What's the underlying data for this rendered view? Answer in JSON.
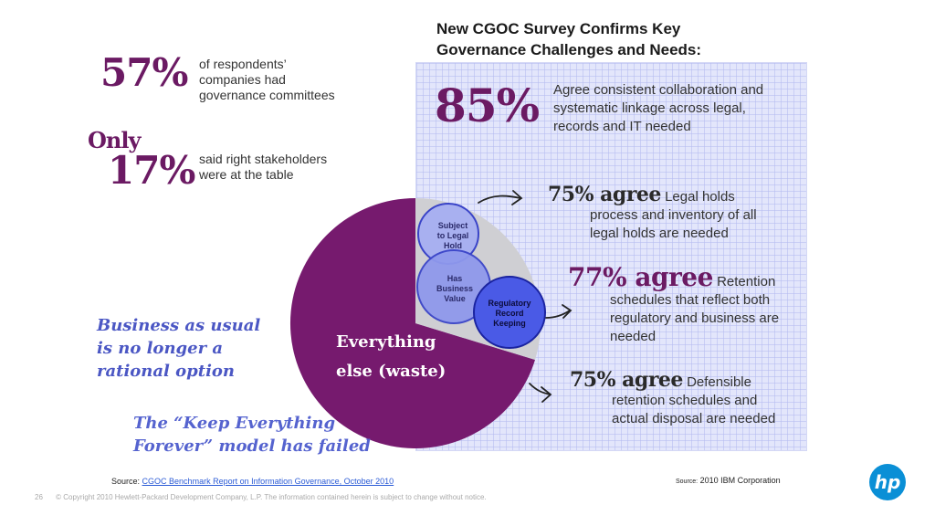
{
  "headline": {
    "line1": "New CGOC Survey Confirms Key",
    "line2": "Governance Challenges and Needs:"
  },
  "left_stats": {
    "stat1": {
      "value": "57%",
      "lines": [
        "of respondents’",
        "companies had",
        "governance committees"
      ]
    },
    "stat2": {
      "prefix": "Only",
      "value": "17%",
      "lines": [
        "said right stakeholders",
        "were at the table"
      ]
    }
  },
  "right_stats": {
    "stat85": {
      "value": "85%",
      "lines": [
        "Agree consistent collaboration and",
        "systematic linkage across legal,",
        "records and IT needed"
      ]
    },
    "agree1": {
      "pct": "75% agree",
      "first": "Legal holds",
      "lines": [
        "process and inventory of all",
        "legal holds are needed"
      ]
    },
    "agree2": {
      "pct": "77% agree",
      "first": "Retention",
      "lines": [
        "schedules that reflect both",
        "regulatory and business are",
        "needed"
      ]
    },
    "agree3": {
      "pct": "75% agree",
      "first": "Defensible",
      "lines": [
        "retention schedules and",
        "actual disposal are needed"
      ]
    }
  },
  "pie": {
    "label_line1": "Everything",
    "label_line2": "else (waste)",
    "colors": {
      "waste": "#761a6e",
      "rest": "#cfcfd3"
    },
    "circles": {
      "legal_hold": [
        "Subject",
        "to Legal",
        "Hold"
      ],
      "business_value": [
        "Has",
        "Business",
        "Value"
      ],
      "regulatory": [
        "Regulatory",
        "Record",
        "Keeping"
      ]
    }
  },
  "notes": {
    "note1": [
      "Business as usual",
      "is no longer a",
      "rational option"
    ],
    "note2": [
      "The “Keep Everything",
      "Forever” model has failed"
    ]
  },
  "sources": {
    "left_prefix": "Source:",
    "left_link": "CGOC Benchmark Report on Information Governance, October 2010",
    "right_prefix": "Source:",
    "right_text": "2010 IBM Corporation"
  },
  "footer": {
    "page_number": "26",
    "copyright": "© Copyright 2010 Hewlett-Packard Development Company, L.P.  The information contained herein is subject to change without notice."
  },
  "logo": {
    "text": "hp",
    "icon": "hp-logo-icon",
    "color": "#0a8fd6"
  }
}
